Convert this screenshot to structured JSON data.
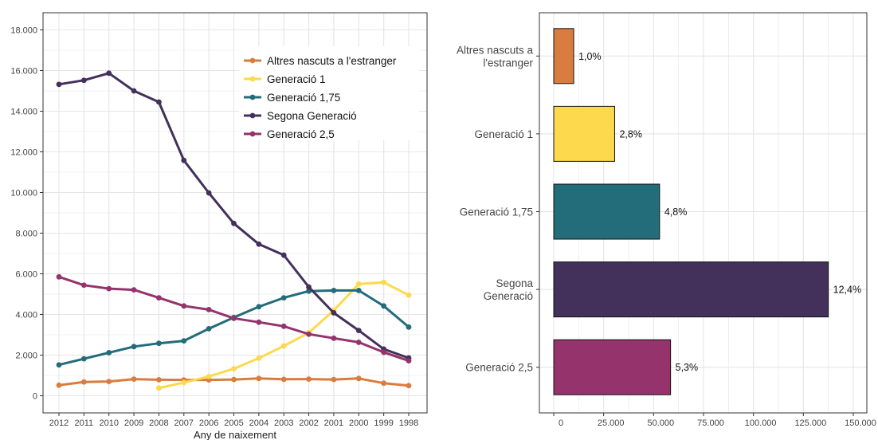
{
  "colors": {
    "altres": "#D97C3F",
    "gen1": "#FDD94E",
    "gen175": "#236C7A",
    "segona": "#43305B",
    "gen25": "#95336C",
    "grid": "#E5E5E5",
    "axis": "#333333"
  },
  "chart_data": [
    {
      "type": "line",
      "xlabel": "Any de naixement",
      "ylabel": "",
      "ylim": [
        0,
        18000
      ],
      "yticks": [
        "0",
        "2.000",
        "4.000",
        "6.000",
        "8.000",
        "10.000",
        "12.000",
        "14.000",
        "16.000",
        "18.000"
      ],
      "ytick_values": [
        0,
        2000,
        4000,
        6000,
        8000,
        10000,
        12000,
        14000,
        16000,
        18000
      ],
      "categories": [
        "2012",
        "2011",
        "2010",
        "2009",
        "2008",
        "2007",
        "2006",
        "2005",
        "2004",
        "2003",
        "2002",
        "2001",
        "2000",
        "1999",
        "1998"
      ],
      "grid": true,
      "legend": "top-right",
      "series": [
        {
          "name": "Altres nascuts a l'estranger",
          "color_key": "altres",
          "values": [
            520,
            680,
            700,
            820,
            790,
            780,
            780,
            800,
            850,
            810,
            820,
            800,
            850,
            620,
            500
          ]
        },
        {
          "name": "Generació 1",
          "color_key": "gen1",
          "values": [
            null,
            null,
            null,
            null,
            380,
            650,
            950,
            1330,
            1850,
            2450,
            3100,
            4200,
            5500,
            5580,
            4950
          ]
        },
        {
          "name": "Generació 1,75",
          "color_key": "gen175",
          "values": [
            1520,
            1820,
            2120,
            2420,
            2580,
            2700,
            3300,
            3850,
            4380,
            4820,
            5150,
            5180,
            5180,
            4420,
            3380
          ]
        },
        {
          "name": "Segona Generació",
          "color_key": "segona",
          "values": [
            15320,
            15520,
            15870,
            15000,
            14450,
            11580,
            9980,
            8480,
            7460,
            6920,
            5350,
            4080,
            3210,
            2300,
            1860
          ]
        },
        {
          "name": "Generació 2,5",
          "color_key": "gen25",
          "values": [
            5850,
            5440,
            5270,
            5210,
            4820,
            4420,
            4240,
            3810,
            3620,
            3420,
            3030,
            2830,
            2630,
            2140,
            1720
          ]
        }
      ]
    },
    {
      "type": "bar",
      "orientation": "horizontal",
      "xlim": [
        0,
        150000
      ],
      "xticks": [
        "0",
        "25.000",
        "50.000",
        "75.000",
        "100.000",
        "125.000",
        "150.000"
      ],
      "xtick_values": [
        0,
        25000,
        50000,
        75000,
        100000,
        125000,
        150000
      ],
      "grid": true,
      "categories": [
        {
          "lines": [
            "Altres nascuts a",
            "l'estranger"
          ],
          "color_key": "altres",
          "value": 10000,
          "label": "1,0%"
        },
        {
          "lines": [
            "Generació 1"
          ],
          "color_key": "gen1",
          "value": 30500,
          "label": "2,8%"
        },
        {
          "lines": [
            "Generació 1,75"
          ],
          "color_key": "gen175",
          "value": 53000,
          "label": "4,8%"
        },
        {
          "lines": [
            "Segona",
            "Generació"
          ],
          "color_key": "segona",
          "value": 137500,
          "label": "12,4%"
        },
        {
          "lines": [
            "Generació 2,5"
          ],
          "color_key": "gen25",
          "value": 58500,
          "label": "5,3%"
        }
      ]
    }
  ]
}
